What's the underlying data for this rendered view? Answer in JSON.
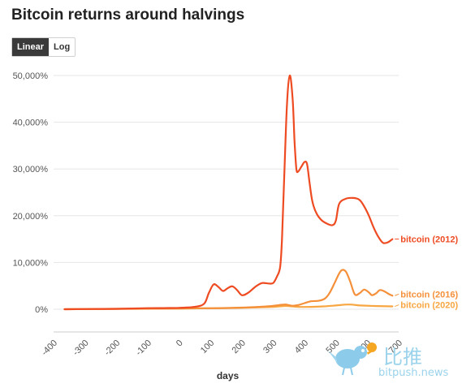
{
  "header": {
    "title": "Bitcoin returns around halvings"
  },
  "scale_toggle": {
    "options": [
      "Linear",
      "Log"
    ],
    "selected": "Linear"
  },
  "watermark": {
    "chinese_text": "比推",
    "domain_text": "bitpush.news"
  },
  "chart_data": {
    "type": "line",
    "title": "Bitcoin returns around halvings",
    "xlabel": "days",
    "ylabel": "",
    "xlim": [
      -400,
      700
    ],
    "ylim": [
      0,
      50000
    ],
    "x_ticks": [
      -400,
      -300,
      -200,
      -100,
      0,
      100,
      200,
      300,
      400,
      500,
      600,
      700
    ],
    "x_tick_labels": [
      "-400",
      "-300",
      "-200",
      "-100",
      "0",
      "100",
      "200",
      "300",
      "400",
      "500",
      "600",
      "700"
    ],
    "y_ticks": [
      0,
      10000,
      20000,
      30000,
      40000,
      50000
    ],
    "y_tick_labels": [
      "0%",
      "10,000%",
      "20,000%",
      "30,000%",
      "40,000%",
      "50,000%"
    ],
    "grid": "horizontal",
    "series": [
      {
        "name": "bitcoin (2012)",
        "color": "#ee4b22",
        "points": [
          [
            -365,
            0
          ],
          [
            -300,
            40
          ],
          [
            -200,
            90
          ],
          [
            -100,
            220
          ],
          [
            -50,
            250
          ],
          [
            0,
            300
          ],
          [
            50,
            500
          ],
          [
            80,
            1200
          ],
          [
            95,
            3500
          ],
          [
            110,
            5300
          ],
          [
            125,
            4800
          ],
          [
            140,
            3900
          ],
          [
            155,
            4500
          ],
          [
            170,
            4900
          ],
          [
            185,
            4100
          ],
          [
            200,
            3000
          ],
          [
            220,
            3500
          ],
          [
            245,
            4900
          ],
          [
            265,
            5600
          ],
          [
            285,
            5500
          ],
          [
            300,
            5600
          ],
          [
            312,
            7000
          ],
          [
            322,
            9000
          ],
          [
            328,
            15000
          ],
          [
            336,
            30000
          ],
          [
            344,
            44000
          ],
          [
            353,
            50000
          ],
          [
            362,
            45000
          ],
          [
            368,
            36000
          ],
          [
            374,
            30000
          ],
          [
            380,
            29500
          ],
          [
            390,
            30500
          ],
          [
            400,
            31500
          ],
          [
            408,
            31000
          ],
          [
            416,
            27000
          ],
          [
            425,
            23000
          ],
          [
            438,
            20500
          ],
          [
            455,
            19000
          ],
          [
            475,
            18200
          ],
          [
            490,
            18000
          ],
          [
            500,
            19000
          ],
          [
            510,
            22500
          ],
          [
            530,
            23600
          ],
          [
            555,
            23800
          ],
          [
            575,
            23400
          ],
          [
            590,
            22000
          ],
          [
            605,
            20000
          ],
          [
            620,
            17500
          ],
          [
            635,
            15500
          ],
          [
            650,
            14200
          ],
          [
            665,
            14300
          ],
          [
            680,
            15000
          ]
        ]
      },
      {
        "name": "bitcoin (2016)",
        "color": "#f5903a",
        "points": [
          [
            -365,
            0
          ],
          [
            -200,
            60
          ],
          [
            -100,
            110
          ],
          [
            0,
            150
          ],
          [
            100,
            200
          ],
          [
            200,
            350
          ],
          [
            280,
            600
          ],
          [
            320,
            900
          ],
          [
            340,
            1000
          ],
          [
            360,
            750
          ],
          [
            380,
            900
          ],
          [
            400,
            1300
          ],
          [
            420,
            1700
          ],
          [
            445,
            1800
          ],
          [
            465,
            2300
          ],
          [
            480,
            3500
          ],
          [
            495,
            5500
          ],
          [
            510,
            7600
          ],
          [
            520,
            8400
          ],
          [
            532,
            8000
          ],
          [
            545,
            6000
          ],
          [
            560,
            3200
          ],
          [
            575,
            3400
          ],
          [
            590,
            4200
          ],
          [
            605,
            3600
          ],
          [
            615,
            3000
          ],
          [
            628,
            3400
          ],
          [
            640,
            4100
          ],
          [
            655,
            3800
          ],
          [
            670,
            3200
          ],
          [
            680,
            2900
          ]
        ]
      },
      {
        "name": "bitcoin (2020)",
        "color": "#f7a641",
        "points": [
          [
            -365,
            0
          ],
          [
            -200,
            80
          ],
          [
            -100,
            140
          ],
          [
            0,
            150
          ],
          [
            100,
            200
          ],
          [
            200,
            300
          ],
          [
            300,
            500
          ],
          [
            340,
            700
          ],
          [
            380,
            500
          ],
          [
            420,
            500
          ],
          [
            460,
            600
          ],
          [
            500,
            800
          ],
          [
            540,
            1000
          ],
          [
            580,
            800
          ],
          [
            620,
            700
          ],
          [
            680,
            600
          ]
        ]
      }
    ]
  }
}
